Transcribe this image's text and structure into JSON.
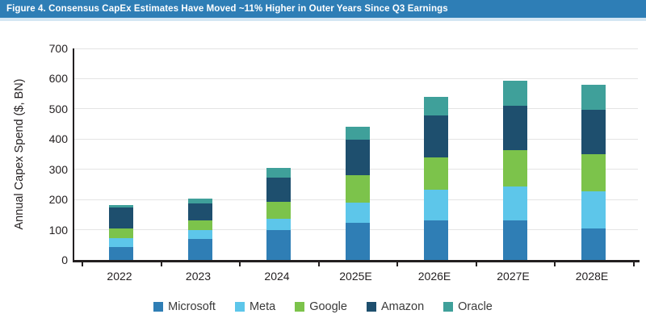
{
  "header": {
    "title": "Figure 4. Consensus CapEx Estimates Have Moved ~11% Higher in Outer Years Since Q3 Earnings",
    "bar_color": "#2e7eb6",
    "strip_color": "#d3e6f3",
    "text_color": "#ffffff"
  },
  "axis": {
    "color": "#231f20",
    "gridline_color": "#e4e4e4"
  },
  "chart_data": {
    "type": "bar",
    "stacked": true,
    "title": "Figure 4. Consensus CapEx Estimates Have Moved ~11% Higher in Outer Years Since Q3 Earnings",
    "xlabel": "",
    "ylabel": "Annual Capex Spend ($, BN)",
    "ylim": [
      0,
      700
    ],
    "yticks": [
      0,
      100,
      200,
      300,
      400,
      500,
      600,
      700
    ],
    "grid": true,
    "legend_position": "bottom",
    "categories": [
      "2022",
      "2023",
      "2024",
      "2025E",
      "2026E",
      "2027E",
      "2028E"
    ],
    "series": [
      {
        "name": "Microsoft",
        "color": "#2f7eb5",
        "values": [
          44,
          70,
          100,
          122,
          131,
          130,
          104
        ]
      },
      {
        "name": "Meta",
        "color": "#5dc6ea",
        "values": [
          28,
          29,
          36,
          67,
          102,
          112,
          122
        ]
      },
      {
        "name": "Google",
        "color": "#7cc34b",
        "values": [
          31,
          31,
          56,
          91,
          107,
          121,
          123
        ]
      },
      {
        "name": "Amazon",
        "color": "#1e4f6e",
        "values": [
          70,
          58,
          81,
          117,
          139,
          147,
          148
        ]
      },
      {
        "name": "Oracle",
        "color": "#3fa09a",
        "values": [
          10,
          16,
          31,
          44,
          62,
          82,
          82
        ]
      }
    ],
    "totals": [
      183,
      204,
      304,
      441,
      541,
      592,
      579
    ]
  }
}
